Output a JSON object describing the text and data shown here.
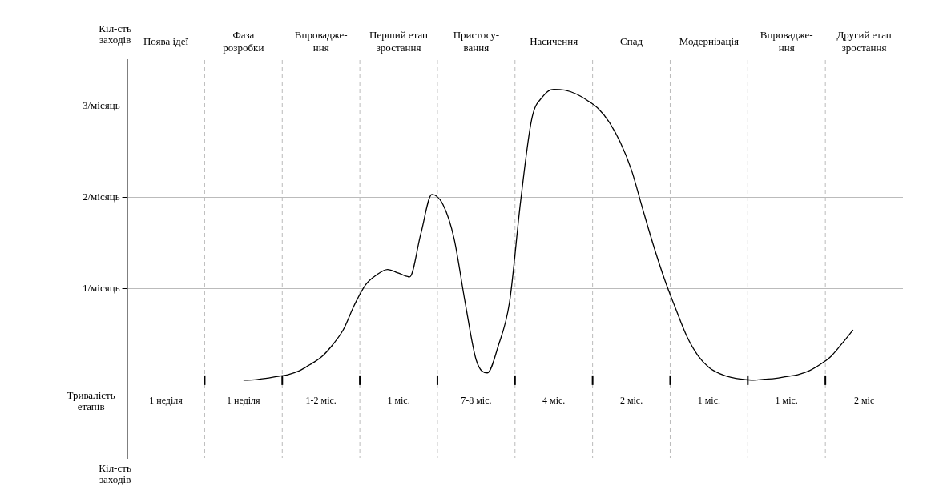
{
  "chart_data": {
    "type": "line",
    "xlabel": "Тривалість етапів",
    "ylabel": "Кіл-сть заходів",
    "categories": [
      null,
      null,
      null,
      "1 неділя",
      null,
      null,
      null,
      null,
      null,
      null,
      "1 неділя",
      null,
      null,
      null,
      null,
      null,
      null,
      "1-2 міс.",
      null,
      null,
      null,
      null,
      null,
      null,
      "1 міс.",
      null,
      null,
      null,
      null,
      null,
      null,
      "7-8 міс.",
      null,
      null,
      null,
      null,
      null,
      null,
      "4 міс.",
      null,
      null,
      null,
      null,
      null,
      null,
      "2 міс.",
      null,
      null,
      null,
      null,
      null,
      null,
      "1 міс.",
      null,
      null,
      null,
      null,
      null,
      null,
      "1 міс.",
      null,
      null,
      null,
      null,
      null,
      null,
      "2 міс",
      null,
      null,
      null
    ],
    "series": [
      {
        "color": "#000000",
        "values": [
          null,
          null,
          null,
          null,
          null,
          null,
          null,
          null,
          null,
          null,
          0,
          0.005,
          0.02,
          0.04,
          0.06,
          0.1,
          0.17,
          0.25,
          0.38,
          0.55,
          0.82,
          1.04,
          1.15,
          1.21,
          1.17,
          1.13,
          1.6,
          2.03,
          1.92,
          1.55,
          0.85,
          0.22,
          0.08,
          0.38,
          0.85,
          1.95,
          2.85,
          3.1,
          3.18,
          3.17,
          3.13,
          3.06,
          2.97,
          2.82,
          2.6,
          2.3,
          1.88,
          1.47,
          1.1,
          0.78,
          0.48,
          0.27,
          0.14,
          0.07,
          0.03,
          0.01,
          0,
          0.01,
          0.02,
          0.04,
          0.06,
          0.1,
          0.17,
          0.26,
          0.4,
          0.55,
          null,
          null,
          null,
          null
        ]
      }
    ],
    "ylim": [
      -0.85,
      3.5
    ],
    "yticks": [
      {
        "value": 1,
        "label": "1/місяць"
      },
      {
        "value": 2,
        "label": "2/місяць"
      },
      {
        "value": 3,
        "label": "3/місяць"
      }
    ],
    "grid": true,
    "marker": "none",
    "line_style": "solid",
    "annotations": [
      "Поява ідеї",
      "Фаза\nрозробки",
      "Впровадже-\nння",
      "Перший етап\nзростання",
      "Пристосу-\nвання",
      "Насичення",
      "Спад",
      "Модернізація",
      "Впровадже-\nння",
      "Другий етап\nзростання",
      "Кіл-сть заходів"
    ]
  }
}
